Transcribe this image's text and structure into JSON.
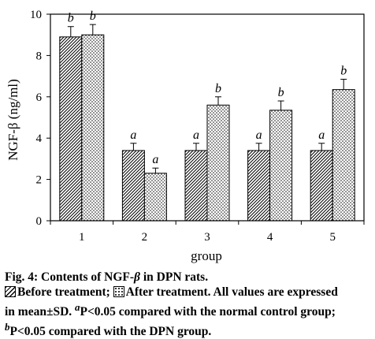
{
  "chart_data": {
    "type": "bar",
    "categories": [
      "1",
      "2",
      "3",
      "4",
      "5"
    ],
    "series": [
      {
        "name": "Before treatment",
        "pattern": "diagonal-hatch",
        "values": [
          8.9,
          3.4,
          3.4,
          3.4,
          3.4
        ],
        "errors": [
          0.5,
          0.35,
          0.35,
          0.35,
          0.35
        ],
        "labels": [
          "b",
          "a",
          "a",
          "a",
          "a"
        ]
      },
      {
        "name": "After treatment",
        "pattern": "dots",
        "values": [
          9.0,
          2.3,
          5.6,
          5.35,
          6.35
        ],
        "errors": [
          0.5,
          0.25,
          0.4,
          0.45,
          0.5
        ],
        "labels": [
          "b",
          "a",
          "b",
          "b",
          "b"
        ]
      }
    ],
    "xlabel": "group",
    "ylabel": "NGF-β (ng/ml)",
    "ylim": [
      0,
      10
    ],
    "yticks": [
      "0",
      "2",
      "4",
      "6",
      "8",
      "10"
    ],
    "grid": false,
    "legend": "in caption"
  },
  "caption": {
    "fig_label": "Fig. 4: Contents of NGF-",
    "fig_symbol": "β",
    "fig_tail": " in DPN rats.",
    "legend_before": "Before treatment; ",
    "legend_after": "After treatment. All values are expressed",
    "line3_pre": "in mean±SD. ",
    "line3_sup": "a",
    "line3_post": "P<0.05 compared with the normal control group;",
    "line4_sup": "b",
    "line4_post": "P<0.05 compared with the DPN group."
  }
}
